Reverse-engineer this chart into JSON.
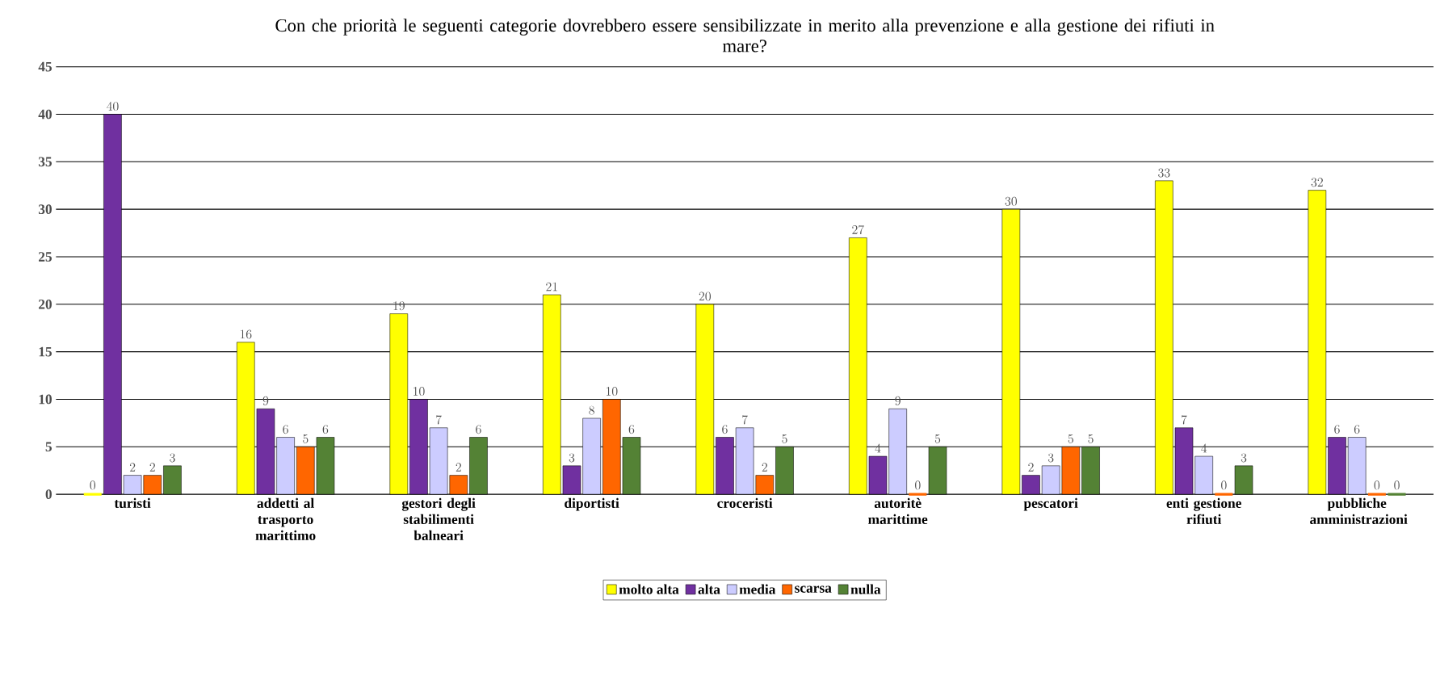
{
  "chart_data": {
    "type": "bar",
    "title": "Con che priorità le seguenti categorie dovrebbero essere sensibilizzate in merito alla prevenzione e alla gestione dei rifiuti in mare?",
    "categories": [
      "turisti",
      "addetti al trasporto marittimo",
      "gestori degli stabilimenti balneari",
      "diportisti",
      "croceristi",
      "autoritè marittime",
      "pescatori",
      "enti gestione rifiuti",
      "pubbliche amministrazioni"
    ],
    "series": [
      {
        "name": "molto alta",
        "color": "#ffff00",
        "values": [
          0,
          16,
          19,
          21,
          20,
          27,
          30,
          33,
          32
        ]
      },
      {
        "name": "alta",
        "color": "#7030a0",
        "values": [
          40,
          9,
          10,
          3,
          6,
          4,
          2,
          7,
          6
        ]
      },
      {
        "name": "media",
        "color": "#ccccff",
        "values": [
          2,
          6,
          7,
          8,
          7,
          9,
          3,
          4,
          6
        ]
      },
      {
        "name": "scarsa",
        "color": "#ff6600",
        "values": [
          2,
          5,
          2,
          10,
          2,
          0,
          5,
          0,
          0
        ]
      },
      {
        "name": "nulla",
        "color": "#548235",
        "values": [
          3,
          6,
          6,
          6,
          5,
          5,
          5,
          3,
          0
        ]
      }
    ],
    "ylim": [
      0,
      45
    ],
    "yticks": [
      0,
      5,
      10,
      15,
      20,
      25,
      30,
      35,
      40,
      45
    ],
    "grid": "y",
    "legend": "bottom",
    "data_labels": true
  }
}
